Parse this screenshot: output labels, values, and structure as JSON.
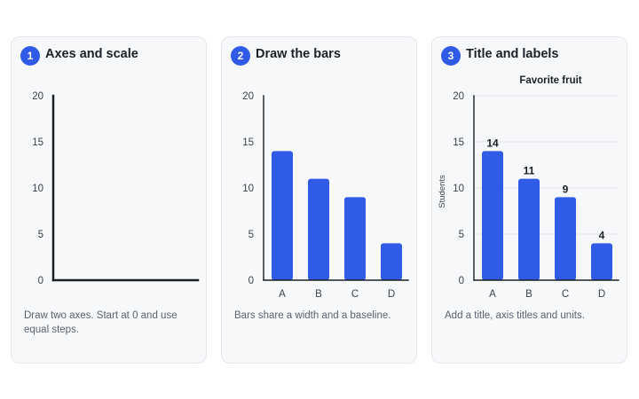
{
  "steps": [
    {
      "number": "1",
      "title": "Axes and scale",
      "caption": "Draw two axes. Start at 0 and use equal steps.",
      "chart_title": "",
      "y_axis_title": "",
      "show_bars": false,
      "show_category_labels": false,
      "show_value_labels": false,
      "show_gridlines": false
    },
    {
      "number": "2",
      "title": "Draw the bars",
      "caption": "Bars share a width and a baseline.",
      "chart_title": "",
      "y_axis_title": "",
      "show_bars": true,
      "show_category_labels": true,
      "show_value_labels": false,
      "show_gridlines": false
    },
    {
      "number": "3",
      "title": "Title and labels",
      "caption": "Add a title, axis titles and units.",
      "chart_title": "Favorite fruit",
      "y_axis_title": "Students",
      "show_bars": true,
      "show_category_labels": true,
      "show_value_labels": true,
      "show_gridlines": true
    }
  ],
  "chart_data": {
    "type": "bar",
    "categories": [
      "A",
      "B",
      "C",
      "D"
    ],
    "values": [
      14,
      11,
      9,
      4
    ],
    "yticks": [
      0,
      5,
      10,
      15,
      20
    ],
    "ylim": [
      0,
      20
    ],
    "title": "Favorite fruit",
    "ylabel": "Students",
    "xlabel": "",
    "grid": true
  },
  "colors": {
    "accent": "#2f5be7",
    "bar": "#2f5be7",
    "axis": "#1b1f27",
    "grid": "#e2e5ea",
    "tick_text": "#3a404c"
  }
}
